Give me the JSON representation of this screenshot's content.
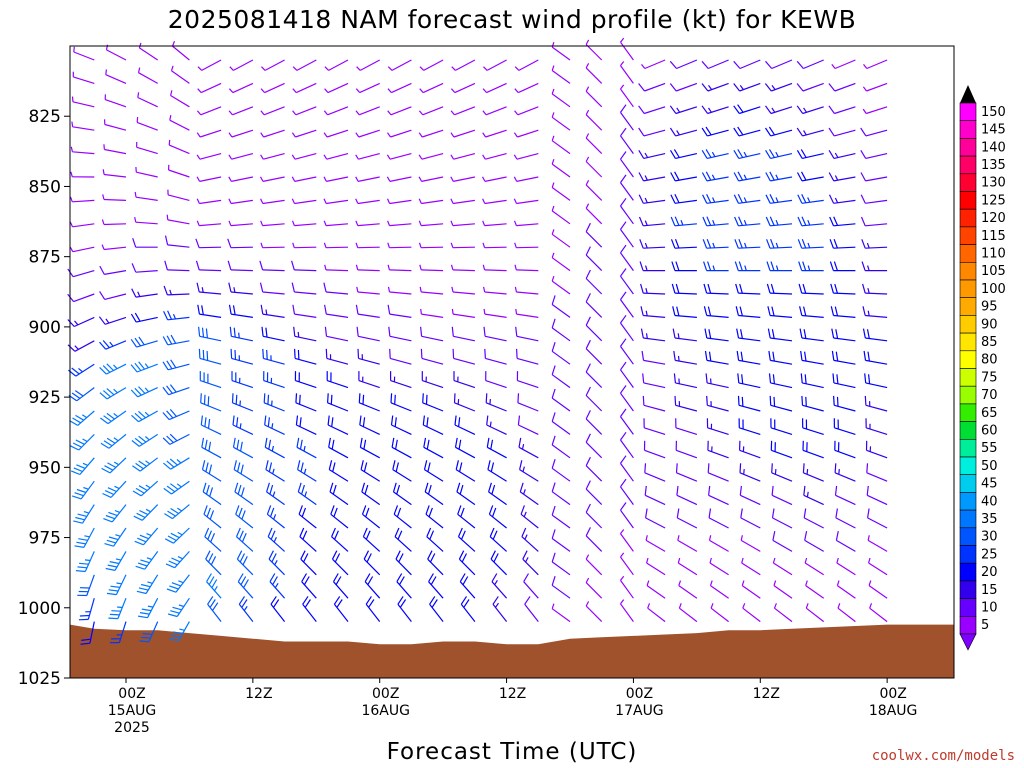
{
  "chart_data": {
    "type": "wind-barb-time-height",
    "title": "2025081418 NAM forecast wind profile (kt) for KEWB",
    "xlabel": "Forecast Time (UTC)",
    "ylabel": "",
    "credit": "coolwx.com/models",
    "y_axis": {
      "scale": "linear",
      "range": [
        1025,
        800
      ],
      "ticks": [
        "825",
        "850",
        "875",
        "900",
        "925",
        "950",
        "975",
        "1000",
        "1025"
      ]
    },
    "x_axis": {
      "range_hours": [
        -6,
        63
      ],
      "ticks": [
        {
          "hour": 0,
          "lines": [
            "00Z",
            "15AUG",
            "2025"
          ]
        },
        {
          "hour": 12,
          "lines": [
            "12Z"
          ]
        },
        {
          "hour": 24,
          "lines": [
            "00Z",
            "16AUG"
          ]
        },
        {
          "hour": 36,
          "lines": [
            "12Z"
          ]
        },
        {
          "hour": 48,
          "lines": [
            "00Z",
            "17AUG"
          ]
        },
        {
          "hour": 60,
          "lines": [
            "12Z"
          ]
        },
        {
          "hour": 72,
          "lines": [
            "00Z",
            "18AUG"
          ]
        }
      ]
    },
    "colorbar": {
      "labels": [
        "150",
        "145",
        "140",
        "135",
        "130",
        "125",
        "120",
        "115",
        "110",
        "105",
        "100",
        "95",
        "90",
        "85",
        "80",
        "75",
        "70",
        "65",
        "60",
        "55",
        "50",
        "45",
        "40",
        "35",
        "30",
        "25",
        "20",
        "15",
        "10",
        "5"
      ],
      "colors": [
        "#ff00ff",
        "#ff00cc",
        "#ff0099",
        "#ff0066",
        "#ff0033",
        "#ff0000",
        "#ff2200",
        "#ff4400",
        "#ff6600",
        "#ff8800",
        "#ff9900",
        "#ffaa00",
        "#ffcc00",
        "#ffe600",
        "#ffff00",
        "#ccff00",
        "#99ff00",
        "#33ee00",
        "#00dd33",
        "#00ee99",
        "#00eedd",
        "#00ccee",
        "#0099ff",
        "#0077ff",
        "#0055ff",
        "#0033ff",
        "#0000ff",
        "#3300ee",
        "#6600ff",
        "#9900ff"
      ]
    },
    "terrain": {
      "color": "#a0522d",
      "surface_pressure": [
        {
          "hour": -6,
          "p": 1006
        },
        {
          "hour": -3,
          "p": 1007.5
        },
        {
          "hour": 0,
          "p": 1008
        },
        {
          "hour": 3,
          "p": 1008
        },
        {
          "hour": 6,
          "p": 1009
        },
        {
          "hour": 9,
          "p": 1010
        },
        {
          "hour": 12,
          "p": 1011
        },
        {
          "hour": 15,
          "p": 1012
        },
        {
          "hour": 18,
          "p": 1012
        },
        {
          "hour": 21,
          "p": 1012
        },
        {
          "hour": 24,
          "p": 1013
        },
        {
          "hour": 27,
          "p": 1013
        },
        {
          "hour": 30,
          "p": 1012
        },
        {
          "hour": 33,
          "p": 1012
        },
        {
          "hour": 36,
          "p": 1013
        },
        {
          "hour": 39,
          "p": 1013
        },
        {
          "hour": 42,
          "p": 1011
        },
        {
          "hour": 45,
          "p": 1010.5
        },
        {
          "hour": 48,
          "p": 1010
        },
        {
          "hour": 51,
          "p": 1009.5
        },
        {
          "hour": 54,
          "p": 1009
        },
        {
          "hour": 57,
          "p": 1008
        },
        {
          "hour": 60,
          "p": 1008
        },
        {
          "hour": 63,
          "p": 1007.5
        },
        {
          "hour": 66,
          "p": 1007
        },
        {
          "hour": 69,
          "p": 1006.5
        },
        {
          "hour": 72,
          "p": 1006
        },
        {
          "hour": 75,
          "p": 1006
        },
        {
          "hour": 78,
          "p": 1006
        }
      ]
    },
    "barb_series": {
      "hours_start": -6,
      "hours_step": 3,
      "hours_count": 27,
      "pressure_start": 805,
      "pressure_step": 8.33,
      "pressure_count": 25,
      "anchor_speed_kt": [
        {
          "hour": 3,
          "p": 955,
          "speed": 40
        },
        {
          "hour": 6,
          "p": 960,
          "speed": 35
        },
        {
          "hour": 12,
          "p": 940,
          "speed": 20
        },
        {
          "hour": 24,
          "p": 975,
          "speed": 20
        },
        {
          "hour": 30,
          "p": 970,
          "speed": 20
        },
        {
          "hour": 48,
          "p": 930,
          "speed": 10
        },
        {
          "hour": 60,
          "p": 860,
          "speed": 25
        },
        {
          "hour": 66,
          "p": 920,
          "speed": 20
        }
      ]
    }
  }
}
